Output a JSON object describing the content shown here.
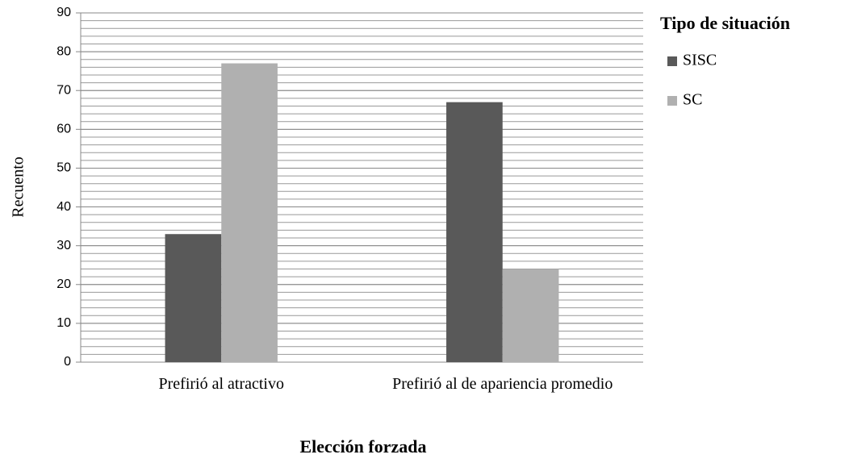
{
  "chart_data": {
    "type": "bar",
    "x_label": "Elección forzada",
    "y_label": "Recuento",
    "legend_title": "Tipo de situación",
    "legend_position": "right",
    "categories": [
      "Prefirió al atractivo",
      "Prefirió al de apariencia promedio"
    ],
    "series": [
      {
        "name": "SISC",
        "color": "#595959",
        "values": [
          33,
          67
        ]
      },
      {
        "name": "SC",
        "color": "#b0b0b0",
        "values": [
          77,
          24
        ]
      }
    ],
    "ylim": [
      0,
      90
    ],
    "yticks": [
      0,
      10,
      20,
      30,
      40,
      50,
      60,
      70,
      80,
      90
    ],
    "grid": true,
    "minor_grid": true
  }
}
